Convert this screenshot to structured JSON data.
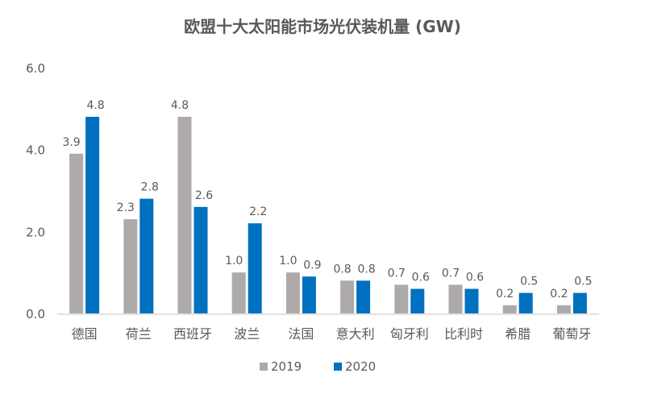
{
  "chart_data": {
    "type": "bar",
    "title": "欧盟十大太阳能市场光伏装机量 (GW)",
    "xlabel": "",
    "ylabel": "",
    "categories": [
      "德国",
      "荷兰",
      "西班牙",
      "波兰",
      "法国",
      "意大利",
      "匈牙利",
      "比利时",
      "希腊",
      "葡萄牙"
    ],
    "series": [
      {
        "name": "2019",
        "color": "#AEAAAA",
        "values": [
          3.9,
          2.3,
          4.8,
          1.0,
          1.0,
          0.8,
          0.7,
          0.7,
          0.2,
          0.2
        ]
      },
      {
        "name": "2020",
        "color": "#0070C0",
        "values": [
          4.8,
          2.8,
          2.6,
          2.2,
          0.9,
          0.8,
          0.6,
          0.6,
          0.5,
          0.5
        ]
      }
    ],
    "ylim": [
      0,
      6
    ],
    "yticks": [
      "0.0",
      "2.0",
      "4.0",
      "6.0"
    ],
    "grid": false,
    "legend": "bottom",
    "data_labels": true
  }
}
